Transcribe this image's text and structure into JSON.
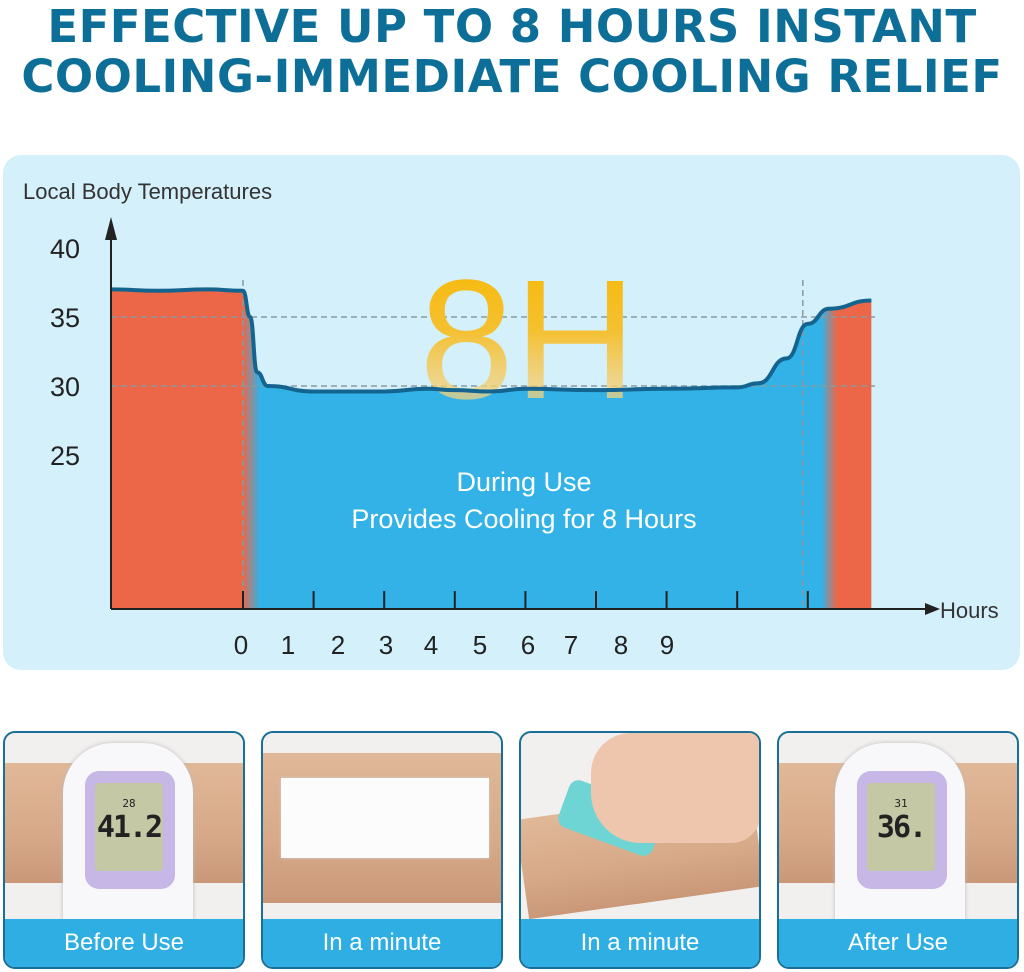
{
  "headline": {
    "line1": "EFFECTIVE UP TO 8 HOURS INSTANT",
    "line2": "COOLING-IMMEDIATE COOLING RELIEF"
  },
  "chart_data": {
    "type": "area",
    "ylabel": "Local Body Temperatures",
    "xlabel": "Hours",
    "y_ticks": [
      "40",
      "35",
      "30",
      "25"
    ],
    "x_ticks": [
      "0",
      "1",
      "2",
      "3",
      "4",
      "5",
      "6",
      "7",
      "8",
      "9"
    ],
    "gridlines_y": [
      35,
      30
    ],
    "highlight": "8H",
    "annotation_line1": "During Use",
    "annotation_line2": "Provides Cooling for 8 Hours",
    "series": [
      {
        "x": [
          -1.87,
          -1.2,
          -0.5,
          0,
          0.1,
          0.2,
          0.35,
          1,
          2,
          2.6,
          3,
          3.5,
          4,
          5,
          6,
          7,
          7.3,
          7.7,
          8,
          8.3,
          8.9
        ],
        "y": [
          37.0,
          36.9,
          37.0,
          36.9,
          35.0,
          31.0,
          30.0,
          29.6,
          29.6,
          29.8,
          29.7,
          29.6,
          29.8,
          29.7,
          29.8,
          29.9,
          30.2,
          32.0,
          34.5,
          35.6,
          36.2
        ]
      }
    ],
    "colors": {
      "before_after": "#ec6748",
      "during": "#32b2e6",
      "line": "#14648f",
      "highlight": "#f7b800"
    }
  },
  "steps": [
    {
      "label": "Before Use",
      "reading_small": "28",
      "reading_big": "41.2"
    },
    {
      "label": "In a minute"
    },
    {
      "label": "In a minute"
    },
    {
      "label": "After Use",
      "reading_small": "31",
      "reading_big": "36."
    }
  ]
}
